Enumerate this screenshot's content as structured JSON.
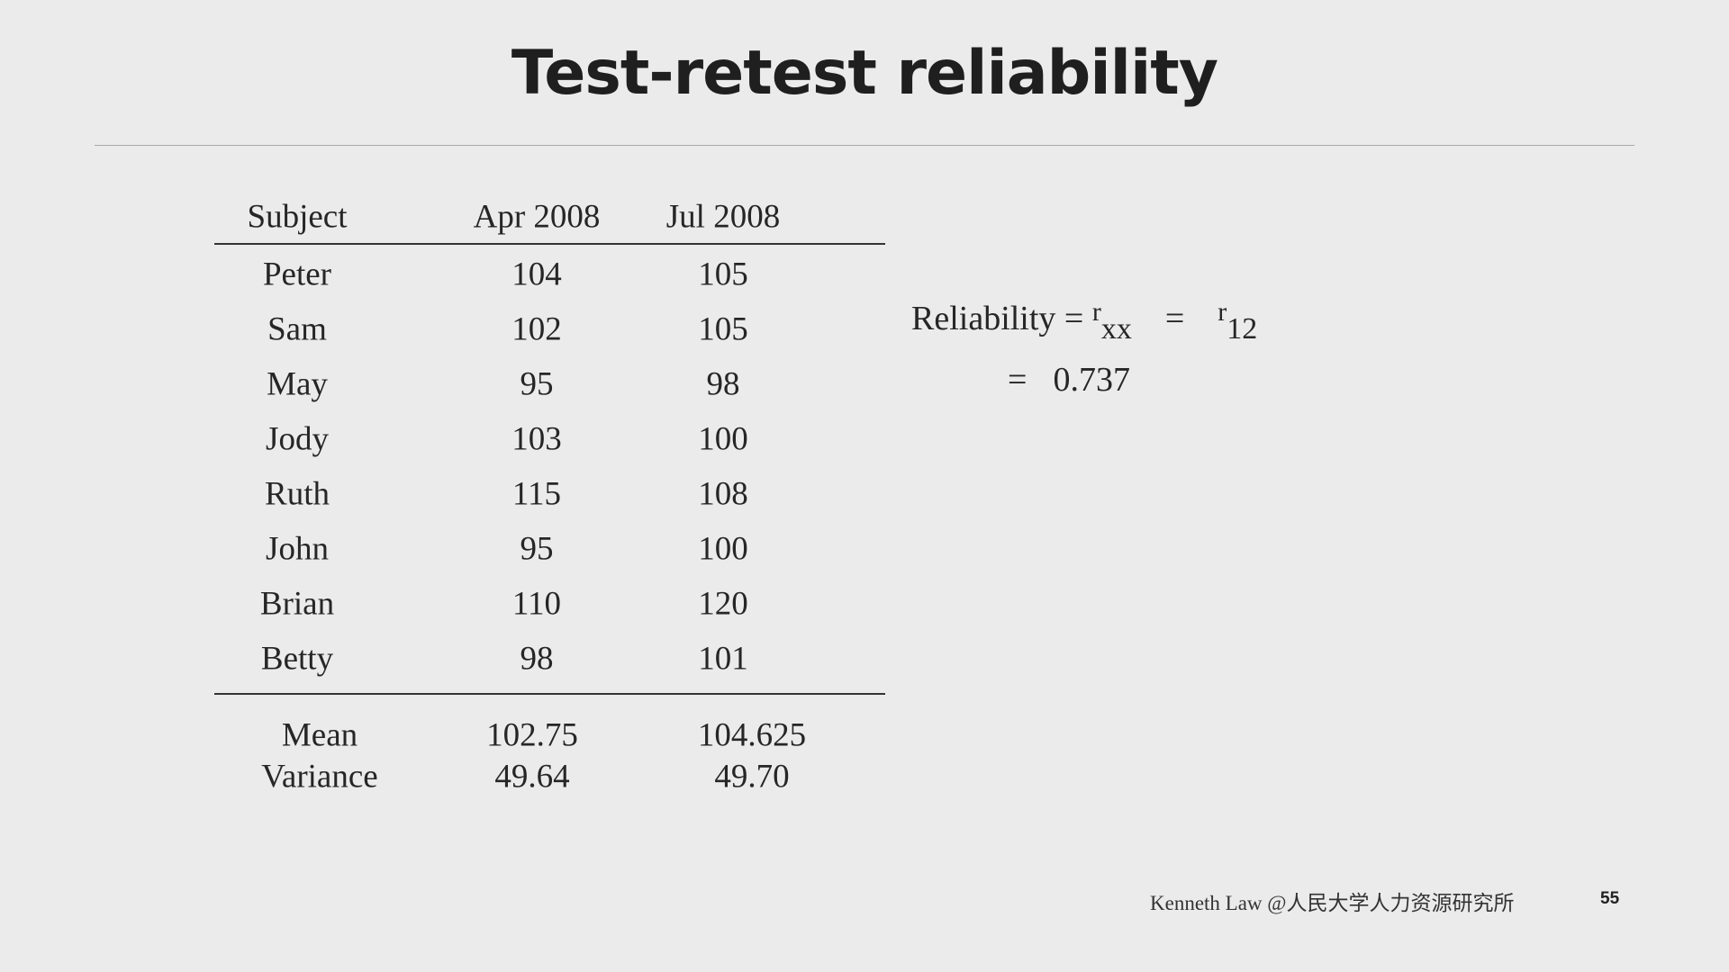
{
  "slide": {
    "title": "Test-retest reliability",
    "page_number": "55",
    "footer_credit": "Kenneth Law @人民大学人力资源研究所"
  },
  "table": {
    "headers": [
      "Subject",
      "Apr 2008",
      "Jul 2008"
    ],
    "rows": [
      [
        "Peter",
        "104",
        "105"
      ],
      [
        "Sam",
        "102",
        "105"
      ],
      [
        "May",
        "95",
        "98"
      ],
      [
        "Jody",
        "103",
        "100"
      ],
      [
        "Ruth",
        "115",
        "108"
      ],
      [
        "John",
        "95",
        "100"
      ],
      [
        "Brian",
        "110",
        "120"
      ],
      [
        "Betty",
        "98",
        "101"
      ]
    ],
    "stats": [
      [
        "Mean",
        "102.75",
        "104.625"
      ],
      [
        "Variance",
        "49.64",
        "49.70"
      ]
    ]
  },
  "formula": {
    "label": "Reliability =",
    "r1": "r",
    "sub1": "xx",
    "eq": "=",
    "r2": "r",
    "sub2": "12",
    "result_eq": "=",
    "result_value": "0.737"
  }
}
